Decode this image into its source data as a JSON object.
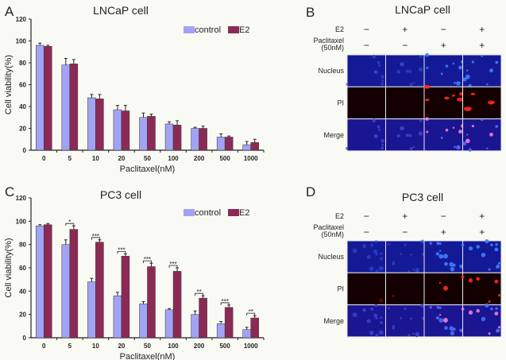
{
  "colors": {
    "control": "#a3a3f5",
    "E2": "#8c2a55",
    "axis": "#222222"
  },
  "chart_data": [
    {
      "panel_label": "A",
      "type": "bar",
      "title": "LNCaP cell",
      "xlabel": "Paclitaxel(nM)",
      "ylabel": "Cell viability(%)",
      "ylim": [
        0,
        120
      ],
      "yticks": [
        "0",
        "20",
        "40",
        "60",
        "80",
        "100",
        "120"
      ],
      "categories": [
        "0",
        "5",
        "10",
        "20",
        "50",
        "100",
        "200",
        "500",
        "1000"
      ],
      "legend_position": "top-right",
      "series": [
        {
          "name": "control",
          "values": [
            96,
            78,
            48,
            37,
            30,
            24,
            20,
            12,
            5
          ],
          "errors": [
            2,
            6,
            3,
            4,
            4,
            2,
            1,
            3,
            3
          ]
        },
        {
          "name": "E2",
          "values": [
            95,
            79,
            47,
            36,
            31,
            23,
            20,
            12,
            7
          ],
          "errors": [
            1,
            4,
            4,
            5,
            2,
            4,
            2,
            1,
            3
          ]
        }
      ],
      "significance": [
        "",
        "",
        "",
        "",
        "",
        "",
        "",
        "",
        ""
      ]
    },
    {
      "panel_label": "C",
      "type": "bar",
      "title": "PC3 cell",
      "xlabel": "Paclitaxel(nM)",
      "ylabel": "Cell viability(%)",
      "ylim": [
        0,
        120
      ],
      "yticks": [
        "0",
        "20",
        "40",
        "60",
        "80",
        "100",
        "120"
      ],
      "categories": [
        "0",
        "5",
        "10",
        "20",
        "50",
        "100",
        "200",
        "500",
        "1000"
      ],
      "legend_position": "top-right",
      "series": [
        {
          "name": "control",
          "values": [
            96,
            80,
            48,
            36,
            29,
            24,
            20,
            12,
            7
          ],
          "errors": [
            1,
            4,
            3,
            3,
            2,
            1,
            3,
            2,
            2
          ]
        },
        {
          "name": "E2",
          "values": [
            97,
            93,
            82,
            70,
            61,
            57,
            34,
            26,
            17
          ],
          "errors": [
            1,
            3,
            2,
            2,
            3,
            3,
            2,
            2,
            2
          ]
        }
      ],
      "significance": [
        "",
        "*",
        "***",
        "***",
        "***",
        "***",
        "**",
        "***",
        "**"
      ]
    }
  ],
  "image_panels": [
    {
      "panel_label": "B",
      "title": "LNCaP cell",
      "condition_labels": [
        "E2",
        "Paclitaxel",
        "(50nM)"
      ],
      "e2": [
        "−",
        "+",
        "−",
        "+"
      ],
      "paclitaxel": [
        "−",
        "−",
        "+",
        "+"
      ],
      "rows": [
        "Nucleus",
        "PI",
        "Merge"
      ]
    },
    {
      "panel_label": "D",
      "title": "PC3 cell",
      "condition_labels": [
        "E2",
        "Paclitaxel",
        "(50nM)"
      ],
      "e2": [
        "−",
        "+",
        "−",
        "+"
      ],
      "paclitaxel": [
        "−",
        "−",
        "+",
        "+"
      ],
      "rows": [
        "Nucleus",
        "PI",
        "Merge"
      ]
    }
  ]
}
